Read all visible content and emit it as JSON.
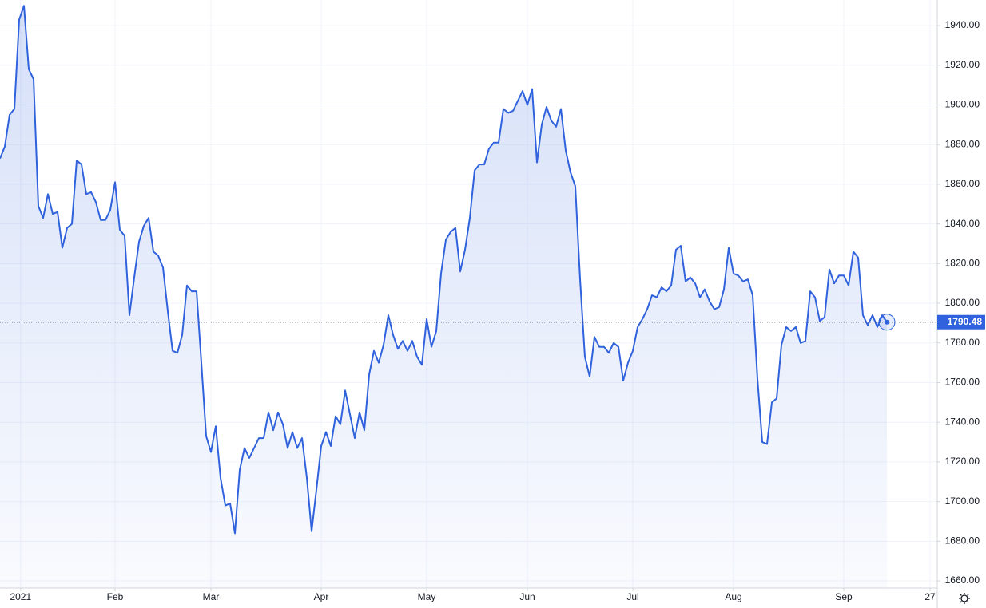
{
  "chart_data": {
    "type": "line",
    "color": "#2f62dc",
    "grid": true,
    "values": [
      1873,
      1879,
      1895,
      1898,
      1943,
      1950,
      1918,
      1913,
      1849,
      1843,
      1855,
      1845,
      1846,
      1828,
      1838,
      1840,
      1872,
      1870,
      1855,
      1856,
      1851,
      1842,
      1842,
      1847,
      1861,
      1837,
      1834,
      1794,
      1813,
      1831,
      1839,
      1843,
      1826,
      1824,
      1818,
      1796,
      1776,
      1775,
      1784,
      1809,
      1806,
      1806,
      1770,
      1733,
      1725,
      1738,
      1712,
      1698,
      1699,
      1684,
      1716,
      1727,
      1722,
      1727,
      1732,
      1732,
      1745,
      1736,
      1745,
      1739,
      1727,
      1735,
      1727,
      1732,
      1712,
      1685,
      1706,
      1728,
      1735,
      1728,
      1743,
      1739,
      1756,
      1744,
      1732,
      1745,
      1736,
      1764,
      1776,
      1770,
      1779,
      1794,
      1784,
      1777,
      1781,
      1776,
      1781,
      1773,
      1769,
      1792,
      1778,
      1786,
      1815,
      1832,
      1836,
      1838,
      1816,
      1827,
      1843,
      1867,
      1870,
      1870,
      1878,
      1881,
      1881,
      1898,
      1896,
      1897,
      1902,
      1907,
      1900,
      1908,
      1871,
      1890,
      1899,
      1892,
      1889,
      1898,
      1877,
      1866,
      1859,
      1812,
      1773,
      1763,
      1783,
      1778,
      1778,
      1775,
      1780,
      1778,
      1761,
      1770,
      1776,
      1788,
      1792,
      1797,
      1804,
      1803,
      1808,
      1806,
      1809,
      1827,
      1829,
      1811,
      1813,
      1810,
      1803,
      1807,
      1801,
      1797,
      1798,
      1807,
      1828,
      1815,
      1814,
      1811,
      1812,
      1804,
      1762,
      1730,
      1729,
      1750,
      1752,
      1779,
      1788,
      1786,
      1788,
      1780,
      1781,
      1806,
      1803,
      1791,
      1793,
      1817,
      1810,
      1814,
      1814,
      1809,
      1826,
      1823,
      1794,
      1789,
      1794,
      1788,
      1794,
      1790.48
    ],
    "xlim": [
      0,
      195.5
    ],
    "xticks": [
      {
        "value": 4.3,
        "label": "2021"
      },
      {
        "value": 24,
        "label": "Feb"
      },
      {
        "value": 44,
        "label": "Mar"
      },
      {
        "value": 67,
        "label": "Apr"
      },
      {
        "value": 89,
        "label": "May"
      },
      {
        "value": 110,
        "label": "Jun"
      },
      {
        "value": 132,
        "label": "Jul"
      },
      {
        "value": 153,
        "label": "Aug"
      },
      {
        "value": 176,
        "label": "Sep"
      },
      {
        "value": 194,
        "label": "27"
      }
    ],
    "ylim": [
      1656.4,
      1952.9
    ],
    "yticks": [
      {
        "value": 1660,
        "label": "1660.00"
      },
      {
        "value": 1680,
        "label": "1680.00"
      },
      {
        "value": 1700,
        "label": "1700.00"
      },
      {
        "value": 1720,
        "label": "1720.00"
      },
      {
        "value": 1740,
        "label": "1740.00"
      },
      {
        "value": 1760,
        "label": "1760.00"
      },
      {
        "value": 1780,
        "label": "1780.00"
      },
      {
        "value": 1800,
        "label": "1800.00"
      },
      {
        "value": 1820,
        "label": "1820.00"
      },
      {
        "value": 1840,
        "label": "1840.00"
      },
      {
        "value": 1860,
        "label": "1860.00"
      },
      {
        "value": 1880,
        "label": "1880.00"
      },
      {
        "value": 1900,
        "label": "1900.00"
      },
      {
        "value": 1920,
        "label": "1920.00"
      },
      {
        "value": 1940,
        "label": "1940.00"
      }
    ]
  }
}
